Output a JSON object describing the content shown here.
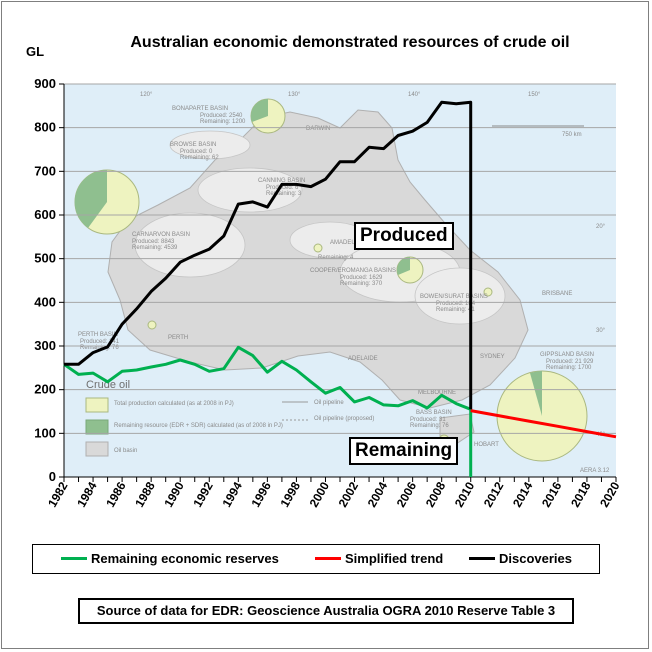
{
  "chart_data": {
    "type": "line",
    "title": "Australian economic demonstrated resources of crude oil",
    "ylabel": "GL",
    "ylim": [
      0,
      900
    ],
    "xlim": [
      1982,
      2020
    ],
    "y_ticks": [
      "0",
      "100",
      "200",
      "300",
      "400",
      "500",
      "600",
      "700",
      "800",
      "900"
    ],
    "x_ticks": [
      "1982",
      "1984",
      "1986",
      "1988",
      "1990",
      "1992",
      "1994",
      "1996",
      "1998",
      "2000",
      "2002",
      "2004",
      "2006",
      "2008",
      "2010",
      "2012",
      "2014",
      "2016",
      "2018",
      "2020"
    ],
    "grid": true,
    "legend_position": "bottom",
    "series": [
      {
        "name": "Remaining economic reserves",
        "color": "#00b050",
        "x": [
          1982,
          1983,
          1984,
          1985,
          1986,
          1987,
          1988,
          1989,
          1990,
          1991,
          1992,
          1993,
          1994,
          1995,
          1996,
          1997,
          1998,
          1999,
          2000,
          2001,
          2002,
          2003,
          2004,
          2005,
          2006,
          2007,
          2008,
          2009,
          2010,
          2010
        ],
        "values": [
          258,
          235,
          238,
          218,
          242,
          245,
          252,
          258,
          268,
          258,
          242,
          248,
          297,
          278,
          240,
          265,
          245,
          218,
          192,
          205,
          172,
          182,
          165,
          163,
          175,
          158,
          187,
          168,
          155,
          0
        ]
      },
      {
        "name": "Simplified trend",
        "color": "#ff0000",
        "x": [
          2010,
          2012,
          2014,
          2016,
          2018,
          2020
        ],
        "values": [
          152,
          140,
          128,
          116,
          104,
          92
        ]
      },
      {
        "name": "Discoveries",
        "color": "#000000",
        "x": [
          1982,
          1983,
          1984,
          1985,
          1986,
          1987,
          1988,
          1989,
          1990,
          1991,
          1992,
          1993,
          1994,
          1995,
          1996,
          1997,
          1998,
          1999,
          2000,
          2001,
          2002,
          2003,
          2004,
          2005,
          2006,
          2007,
          2008,
          2009,
          2010,
          2010
        ],
        "values": [
          258,
          258,
          285,
          298,
          350,
          385,
          425,
          455,
          492,
          508,
          522,
          552,
          625,
          630,
          618,
          670,
          670,
          665,
          682,
          722,
          722,
          755,
          752,
          782,
          792,
          812,
          858,
          855,
          858,
          155
        ]
      }
    ],
    "annotations": [
      "Produced",
      "Remaining"
    ],
    "source": "Source of data for EDR: Geoscience Australia OGRA 2010 Reserve Table 3"
  },
  "map_background": {
    "legend_title": "Crude oil",
    "legend_items": [
      "Total production calculated (as at 2008 in PJ)",
      "Remaining resource (EDR + SDR) calculated (as of 2008 in PJ)",
      "Oil basin"
    ],
    "line_items": [
      "Oil pipeline",
      "Oil pipeline (proposed)"
    ],
    "basins": [
      {
        "name": "BONAPARTE BASIN",
        "produced": "Produced: 2540",
        "remaining": "Remaining: 1200"
      },
      {
        "name": "BROWSE BASIN",
        "produced": "Produced: 0",
        "remaining": "Remaining: 62"
      },
      {
        "name": "CANNING BASIN",
        "produced": "Produced: 6",
        "remaining": "Remaining: 3"
      },
      {
        "name": "CARNARVON BASIN",
        "produced": "Produced: 8843",
        "remaining": "Remaining: 4539"
      },
      {
        "name": "AMADEUS BASIN",
        "produced": "Produced: 24",
        "remaining": "Remaining: 4"
      },
      {
        "name": "COOPER/EROMANGA BASINS",
        "produced": "Produced: 1629",
        "remaining": "Remaining: 370"
      },
      {
        "name": "BOWEN/SURAT BASINS",
        "produced": "Produced: 184",
        "remaining": "Remaining: 41"
      },
      {
        "name": "PERTH BASIN",
        "produced": "Produced: 141",
        "remaining": "Remaining: 76"
      },
      {
        "name": "GIPPSLAND BASIN",
        "produced": "Produced: 21 929",
        "remaining": "Remaining: 1700"
      },
      {
        "name": "BASS BASIN",
        "produced": "Produced: 31",
        "remaining": "Remaining: 76"
      }
    ],
    "cities": [
      "DARWIN",
      "BRISBANE",
      "PERTH",
      "ADELAIDE",
      "SYDNEY",
      "MELBOURNE",
      "HOBART"
    ],
    "longitudes": [
      "120°",
      "130°",
      "140°",
      "150°"
    ],
    "latitudes": [
      "20°",
      "30°",
      "40°"
    ],
    "scale": "750 km",
    "figure_ref": "AERA 3.12"
  }
}
